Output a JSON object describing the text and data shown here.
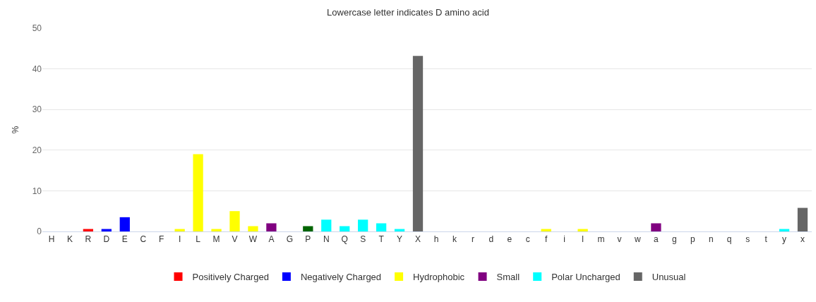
{
  "chart_data": {
    "type": "bar",
    "title": "Lowercase letter indicates D amino acid",
    "ylabel": "%",
    "categories": [
      "H",
      "K",
      "R",
      "D",
      "E",
      "C",
      "F",
      "I",
      "L",
      "M",
      "V",
      "W",
      "A",
      "G",
      "P",
      "N",
      "Q",
      "S",
      "T",
      "Y",
      "X",
      "h",
      "k",
      "r",
      "d",
      "e",
      "c",
      "f",
      "i",
      "l",
      "m",
      "v",
      "w",
      "a",
      "g",
      "p",
      "n",
      "q",
      "s",
      "t",
      "y",
      "x"
    ],
    "series": [
      {
        "name": "Positively Charged",
        "color": "#ff0000",
        "values": [
          null,
          null,
          0.6,
          null,
          null,
          null,
          null,
          null,
          null,
          null,
          null,
          null,
          null,
          null,
          null,
          null,
          null,
          null,
          null,
          null,
          null,
          null,
          null,
          null,
          null,
          null,
          null,
          null,
          null,
          null,
          null,
          null,
          null,
          null,
          null,
          null,
          null,
          null,
          null,
          null,
          null,
          null
        ]
      },
      {
        "name": "Negatively Charged",
        "color": "#0000ff",
        "values": [
          null,
          null,
          null,
          0.6,
          3.5,
          null,
          null,
          null,
          null,
          null,
          null,
          null,
          null,
          null,
          null,
          null,
          null,
          null,
          null,
          null,
          null,
          null,
          null,
          null,
          null,
          null,
          null,
          null,
          null,
          null,
          null,
          null,
          null,
          null,
          null,
          null,
          null,
          null,
          null,
          null,
          null,
          null
        ]
      },
      {
        "name": "Hydrophobic",
        "color": "#ffff00",
        "values": [
          null,
          null,
          null,
          null,
          null,
          null,
          null,
          0.6,
          19,
          0.6,
          5,
          1.3,
          null,
          null,
          null,
          null,
          null,
          null,
          null,
          null,
          null,
          null,
          null,
          null,
          null,
          null,
          null,
          0.6,
          null,
          0.6,
          null,
          null,
          null,
          null,
          null,
          null,
          null,
          null,
          null,
          null,
          null,
          null
        ]
      },
      {
        "name": "Small",
        "color": "#800080",
        "values": [
          null,
          null,
          null,
          null,
          null,
          null,
          null,
          null,
          null,
          null,
          null,
          null,
          2,
          null,
          null,
          null,
          null,
          null,
          null,
          null,
          null,
          null,
          null,
          null,
          null,
          null,
          null,
          null,
          null,
          null,
          null,
          null,
          null,
          2,
          null,
          null,
          null,
          null,
          null,
          null,
          null,
          null
        ]
      },
      {
        "name": "Polar Uncharged",
        "color": "#00ffff",
        "values": [
          null,
          null,
          null,
          null,
          null,
          null,
          null,
          null,
          null,
          null,
          null,
          null,
          null,
          null,
          null,
          2.9,
          1.3,
          2.9,
          2,
          0.6,
          null,
          null,
          null,
          null,
          null,
          null,
          null,
          null,
          null,
          null,
          null,
          null,
          null,
          null,
          null,
          null,
          null,
          null,
          null,
          null,
          0.6,
          null
        ]
      },
      {
        "name": "Unusual",
        "color": "#666666",
        "values": [
          null,
          null,
          null,
          null,
          null,
          null,
          null,
          null,
          null,
          null,
          null,
          null,
          null,
          null,
          null,
          null,
          null,
          null,
          null,
          null,
          43.2,
          null,
          null,
          null,
          null,
          null,
          null,
          null,
          null,
          null,
          null,
          null,
          null,
          null,
          null,
          null,
          null,
          null,
          null,
          null,
          null,
          5.8
        ]
      },
      {
        "color": "#006400",
        "values": [
          null,
          null,
          null,
          null,
          null,
          null,
          null,
          null,
          null,
          null,
          null,
          null,
          null,
          null,
          1.3,
          null,
          null,
          null,
          null,
          null,
          null,
          null,
          null,
          null,
          null,
          null,
          null,
          null,
          null,
          null,
          null,
          null,
          null,
          null,
          null,
          null,
          null,
          null,
          null,
          null,
          null,
          null
        ]
      }
    ],
    "ylim": [
      0,
      50
    ],
    "yticks": [
      0,
      10,
      20,
      30,
      40,
      50
    ],
    "grid": "y",
    "legend": "bottom"
  }
}
